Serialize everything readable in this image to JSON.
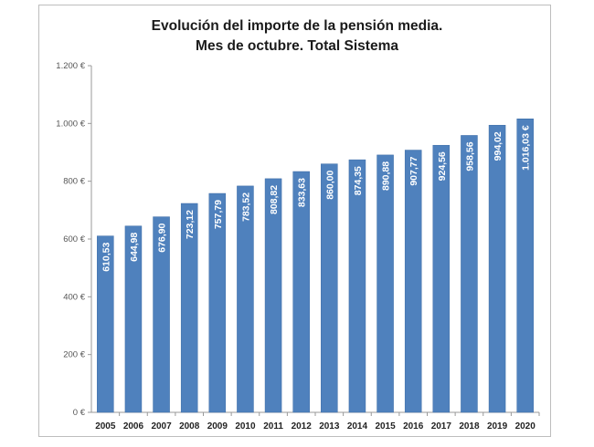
{
  "chart_data": {
    "type": "bar",
    "title": "Evolución del importe de la pensión media.",
    "subtitle": "Mes de octubre. Total Sistema",
    "xlabel": "",
    "ylabel": "",
    "categories": [
      "2005",
      "2006",
      "2007",
      "2008",
      "2009",
      "2010",
      "2011",
      "2012",
      "2013",
      "2014",
      "2015",
      "2016",
      "2017",
      "2018",
      "2019",
      "2020"
    ],
    "values": [
      610.53,
      644.98,
      676.9,
      723.12,
      757.79,
      783.52,
      808.82,
      833.63,
      860.0,
      874.35,
      890.88,
      907.77,
      924.56,
      958.56,
      994.02,
      1016.03
    ],
    "data_labels": [
      "610,53",
      "644,98",
      "676,90",
      "723,12",
      "757,79",
      "783,52",
      "808,82",
      "833,63",
      "860,00",
      "874,35",
      "890,88",
      "907,77",
      "924,56",
      "958,56",
      "994,02",
      "1.016,03 €"
    ],
    "ylim": [
      0,
      1200
    ],
    "yticks": [
      0,
      200,
      400,
      600,
      800,
      1000,
      1200
    ],
    "ytick_labels": [
      "0 €",
      "200 €",
      "400 €",
      "600 €",
      "800 €",
      "1.000 €",
      "1.200 €"
    ],
    "grid": false,
    "legend": "none",
    "bar_color": "#4f81bd"
  }
}
